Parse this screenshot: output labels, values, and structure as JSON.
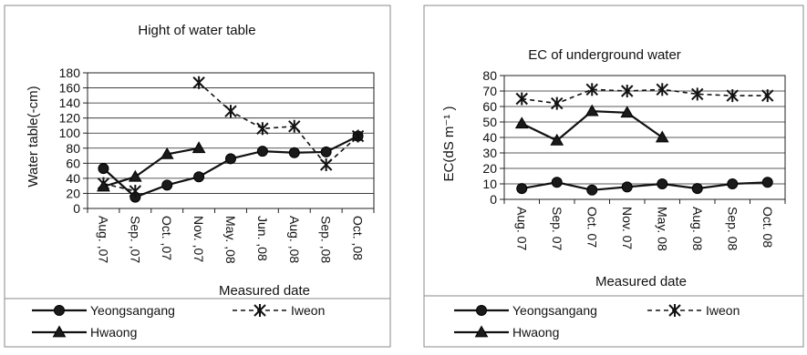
{
  "chart_data": [
    {
      "type": "line",
      "title": "Hight of water table",
      "xlabel": "Measured  date",
      "ylabel": "Water table(-cm)",
      "ylim": [
        0,
        180
      ],
      "yticks": [
        0,
        20,
        40,
        60,
        80,
        100,
        120,
        140,
        160,
        180
      ],
      "categories": [
        "Aug. ,07",
        "Sep. ,07",
        "Oct. ,07",
        "Nov. ,07",
        "May. ,08",
        "Jun. ,08",
        "Aug. ,08",
        "Sep. ,08",
        "Oct. ,08"
      ],
      "grid": true,
      "legend_position": "bottom",
      "series": [
        {
          "name": "Yeongsangang",
          "style": "solid",
          "marker": "circle",
          "values": [
            53,
            15,
            31,
            42,
            66,
            76,
            74,
            75,
            96
          ]
        },
        {
          "name": "Iweon",
          "style": "dashed",
          "marker": "asterisk",
          "values": [
            33,
            23,
            null,
            167,
            129,
            106,
            109,
            58,
            96
          ]
        },
        {
          "name": "Hwaong",
          "style": "solid",
          "marker": "triangle",
          "values": [
            29,
            42,
            72,
            80,
            null,
            null,
            null,
            null,
            null
          ]
        }
      ]
    },
    {
      "type": "line",
      "title": "EC of underground water",
      "xlabel": "Measured date",
      "ylabel": "EC(dS m⁻¹ )",
      "ylim": [
        0,
        80
      ],
      "yticks": [
        0,
        10,
        20,
        30,
        40,
        50,
        60,
        70,
        80
      ],
      "categories": [
        "Aug. 07",
        "Sep. 07",
        "Oct. 07",
        "Nov. 07",
        "May. 08",
        "Aug. 08",
        "Sep. 08",
        "Oct. 08"
      ],
      "grid": true,
      "legend_position": "bottom",
      "series": [
        {
          "name": "Yeongsangang",
          "style": "solid",
          "marker": "circle",
          "values": [
            7,
            11,
            6,
            8,
            10,
            7,
            10,
            11
          ]
        },
        {
          "name": "Iweon",
          "style": "dashed",
          "marker": "asterisk",
          "values": [
            65,
            62,
            71,
            70,
            71,
            68,
            67,
            67
          ]
        },
        {
          "name": "Hwaong",
          "style": "solid",
          "marker": "triangle",
          "values": [
            49,
            38,
            57,
            56,
            40,
            null,
            null,
            null
          ]
        }
      ]
    }
  ]
}
